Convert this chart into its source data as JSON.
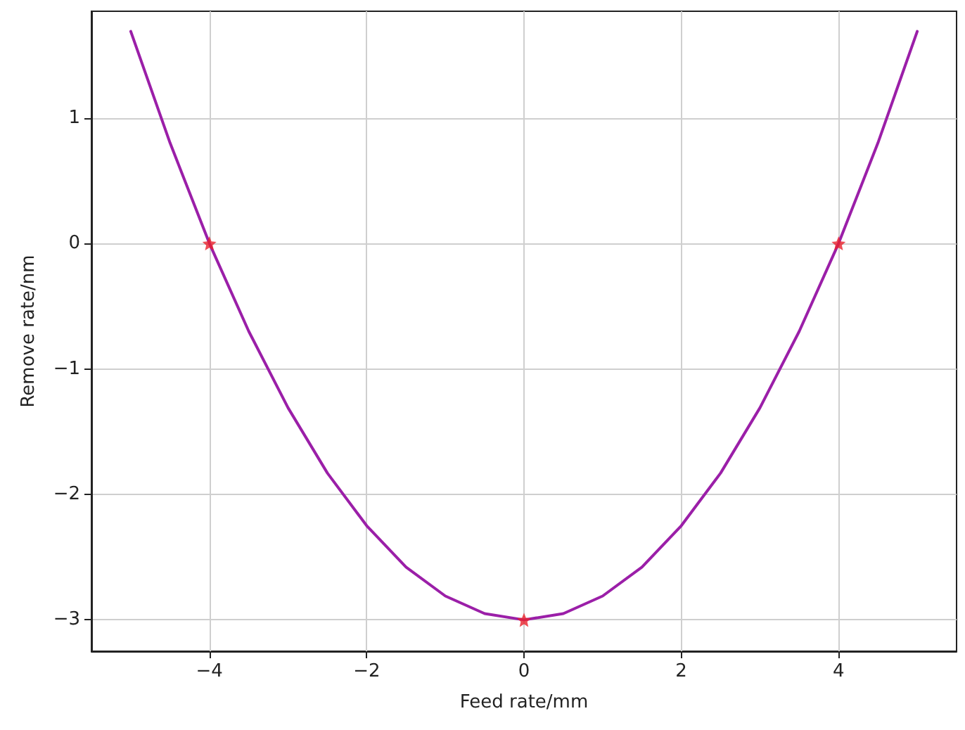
{
  "chart_data": {
    "type": "line",
    "xlabel": "Feed rate/mm",
    "ylabel": "Remove rate/nm",
    "xlim": [
      -5.5,
      5.5
    ],
    "ylim": [
      -3.25,
      1.85
    ],
    "xticks": [
      {
        "value": -4,
        "label": "−4"
      },
      {
        "value": -2,
        "label": "−2"
      },
      0,
      2,
      4
    ],
    "yticks": [
      {
        "value": -3,
        "label": "−3"
      },
      {
        "value": -2,
        "label": "−2"
      },
      {
        "value": -1,
        "label": "−1"
      },
      0,
      1
    ],
    "grid": true,
    "series": [
      {
        "color": "#9b1fa8",
        "marker": "none",
        "line_style": "solid",
        "x": [
          -5,
          -4.5,
          -4,
          -3.5,
          -3,
          -2.5,
          -2,
          -1.5,
          -1,
          -0.5,
          0,
          0.5,
          1,
          1.5,
          2,
          2.5,
          3,
          3.5,
          4,
          4.5,
          5
        ],
        "values": [
          1.69,
          0.8,
          0,
          -0.7,
          -1.31,
          -1.83,
          -2.25,
          -2.58,
          -2.81,
          -2.95,
          -3,
          -2.95,
          -2.81,
          -2.58,
          -2.25,
          -1.83,
          -1.31,
          -0.7,
          0,
          0.8,
          1.69
        ]
      },
      {
        "type": "scatter",
        "color": "#e8202a",
        "marker": "star",
        "x": [
          -4,
          0,
          4
        ],
        "values": [
          0,
          -3,
          0
        ]
      }
    ]
  }
}
